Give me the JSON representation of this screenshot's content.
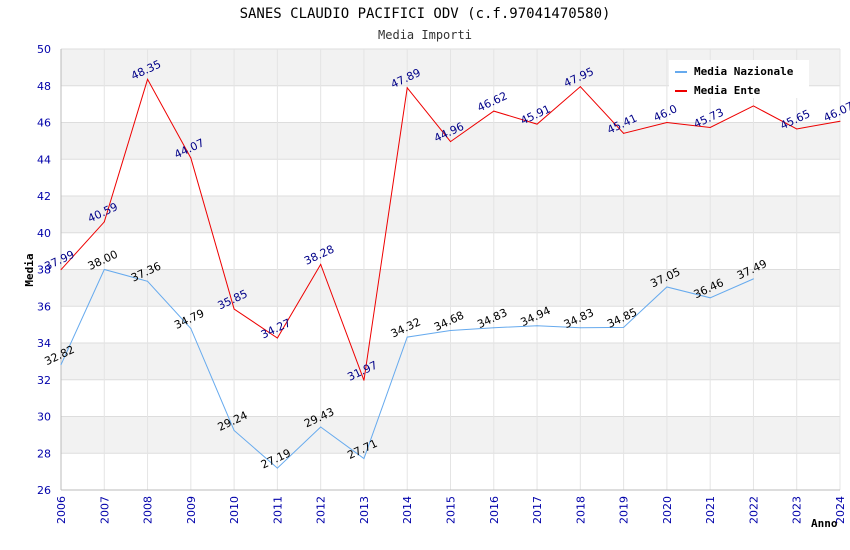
{
  "chart_data": {
    "type": "line",
    "title": "SANES CLAUDIO PACIFICI ODV (c.f.97041470580)",
    "subtitle": "Media Importi",
    "xlabel": "Anno",
    "ylabel": "Media",
    "ylim": [
      26,
      50
    ],
    "yticks": [
      "26",
      "28",
      "30",
      "32",
      "34",
      "36",
      "38",
      "40",
      "42",
      "44",
      "46",
      "48",
      "50"
    ],
    "categories": [
      "2006",
      "2007",
      "2008",
      "2009",
      "2010",
      "2011",
      "2012",
      "2013",
      "2014",
      "2015",
      "2016",
      "2017",
      "2018",
      "2019",
      "2020",
      "2021",
      "2022",
      "2023",
      "2024"
    ],
    "legend_position": "top-right",
    "grid": true,
    "series": [
      {
        "name": "Media Nazionale",
        "color": "#66aaee",
        "label_color": "#000000",
        "values": [
          32.82,
          38.0,
          37.36,
          34.79,
          29.24,
          27.19,
          29.43,
          27.71,
          34.32,
          34.68,
          34.83,
          34.94,
          34.83,
          34.85,
          37.05,
          36.46,
          37.49,
          null,
          null
        ],
        "labels": [
          "32.82",
          "38.00",
          "37.36",
          "34.79",
          "29.24",
          "27.19",
          "29.43",
          "27.71",
          "34.32",
          "34.68",
          "34.83",
          "34.94",
          "34.83",
          "34.85",
          "37.05",
          "36.46",
          "37.49",
          "",
          ""
        ]
      },
      {
        "name": "Media Ente",
        "color": "#ee0000",
        "label_color": "#000088",
        "values": [
          37.99,
          40.59,
          48.35,
          44.07,
          35.85,
          34.27,
          38.28,
          31.97,
          47.89,
          44.96,
          46.62,
          45.91,
          47.95,
          45.41,
          46.0,
          45.73,
          46.9,
          45.65,
          46.07
        ],
        "labels": [
          "37.99",
          "40.59",
          "48.35",
          "44.07",
          "35.85",
          "34.27",
          "38.28",
          "31.97",
          "47.89",
          "44.96",
          "46.62",
          "45.91",
          "47.95",
          "45.41",
          "46.0",
          "45.73",
          "",
          "45.65",
          "46.07"
        ]
      }
    ]
  }
}
